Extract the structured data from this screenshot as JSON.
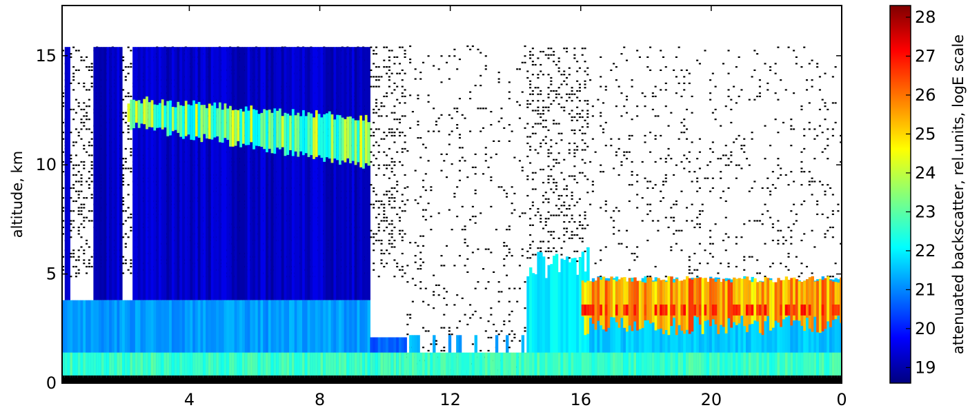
{
  "chart_data": {
    "type": "heatmap",
    "title": "",
    "xlabel": "",
    "ylabel": "altitude, km",
    "x_ticks": [
      "4",
      "8",
      "12",
      "16",
      "20",
      "0"
    ],
    "x_tick_hours": [
      4,
      8,
      12,
      16,
      20,
      24
    ],
    "xlim": [
      0.1,
      24
    ],
    "y_ticks": [
      "0",
      "5",
      "10",
      "15"
    ],
    "y_tick_values": [
      0,
      5,
      10,
      15
    ],
    "ylim": [
      0,
      17.3
    ],
    "grid": false,
    "colormap": "jet",
    "colorbar": {
      "label": "attenuated backscatter, rel.units, logE scale",
      "ticks": [
        "19",
        "20",
        "21",
        "22",
        "23",
        "24",
        "25",
        "26",
        "27",
        "28"
      ],
      "tick_values": [
        19,
        20,
        21,
        22,
        23,
        24,
        25,
        26,
        27,
        28
      ],
      "range": [
        18.6,
        28.3
      ]
    },
    "features": [
      {
        "name": "boundary layer",
        "x_range": [
          0.1,
          24
        ],
        "altitude_km": [
          0,
          3.8
        ],
        "level": 21.5
      },
      {
        "name": "cirrus cloud",
        "x_range": [
          2.1,
          9.5
        ],
        "altitude_km": [
          9.3,
          13
        ],
        "level": 23.5
      },
      {
        "name": "elevated aerosol layer",
        "x_range": [
          16,
          24
        ],
        "altitude_km": [
          2,
          4.9
        ],
        "level": 26
      }
    ]
  }
}
